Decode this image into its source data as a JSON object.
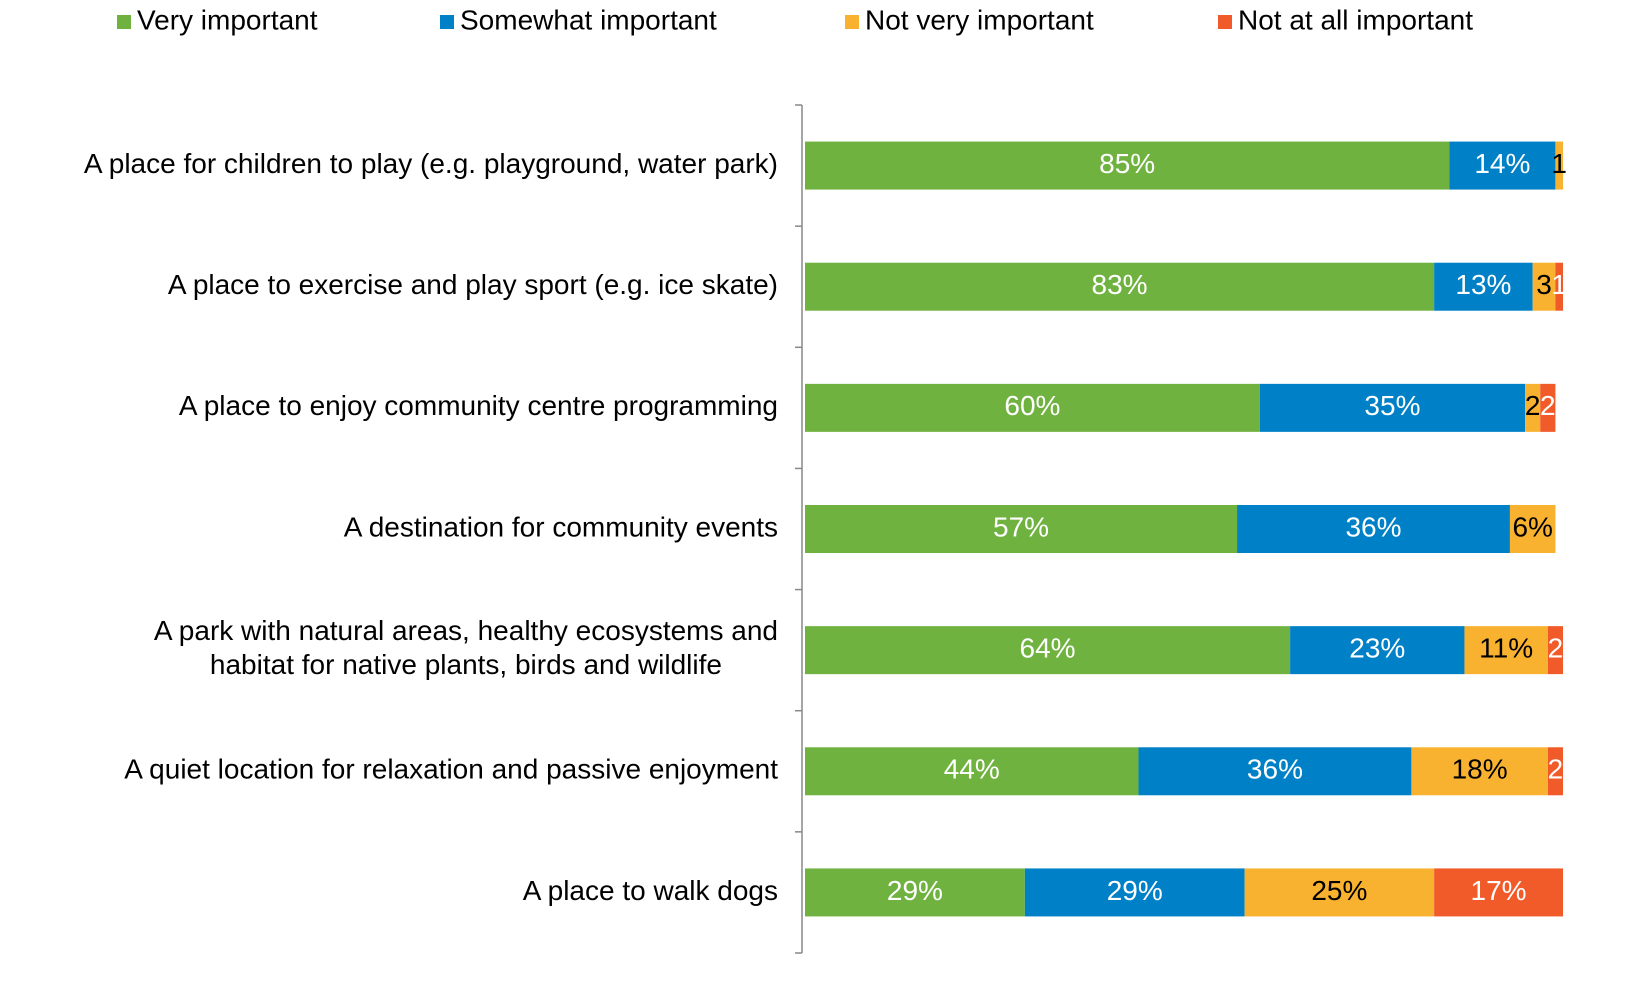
{
  "chart_data": {
    "type": "stacked_bar_horizontal",
    "categories": [
      "A place for children to play (e.g. playground, water park)",
      "A place to exercise and play sport (e.g. ice skate)",
      "A place to enjoy community centre programming",
      "A destination for community events",
      "A park with natural areas, healthy ecosystems and\nhabitat for native plants, birds and wildlife",
      "A quiet location for relaxation and passive enjoyment",
      "A place to walk dogs"
    ],
    "series": [
      {
        "name": "Very important",
        "color": "#70b23f",
        "label_color": "#ffffff",
        "values": [
          85,
          83,
          60,
          57,
          64,
          44,
          29
        ],
        "value_labels": [
          "85%",
          "83%",
          "60%",
          "57%",
          "64%",
          "44%",
          "29%"
        ]
      },
      {
        "name": "Somewhat important",
        "color": "#0080c6",
        "label_color": "#ffffff",
        "values": [
          14,
          13,
          35,
          36,
          23,
          36,
          29
        ],
        "value_labels": [
          "14%",
          "13%",
          "35%",
          "36%",
          "23%",
          "36%",
          "29%"
        ]
      },
      {
        "name": "Not very important",
        "color": "#f8b230",
        "label_color": "#000000",
        "values": [
          1,
          3,
          2,
          6,
          11,
          18,
          25
        ],
        "value_labels": [
          "1",
          "3",
          "2",
          "6%",
          "11%",
          "18%",
          "25%"
        ]
      },
      {
        "name": "Not at all important",
        "color": "#f15a29",
        "label_color": "#ffffff",
        "values": [
          0,
          1,
          2,
          0,
          2,
          2,
          17
        ],
        "value_labels": [
          null,
          "1",
          "2",
          null,
          "2",
          "2",
          "17%"
        ]
      }
    ],
    "xlim": [
      0,
      100
    ],
    "legend": "top"
  }
}
